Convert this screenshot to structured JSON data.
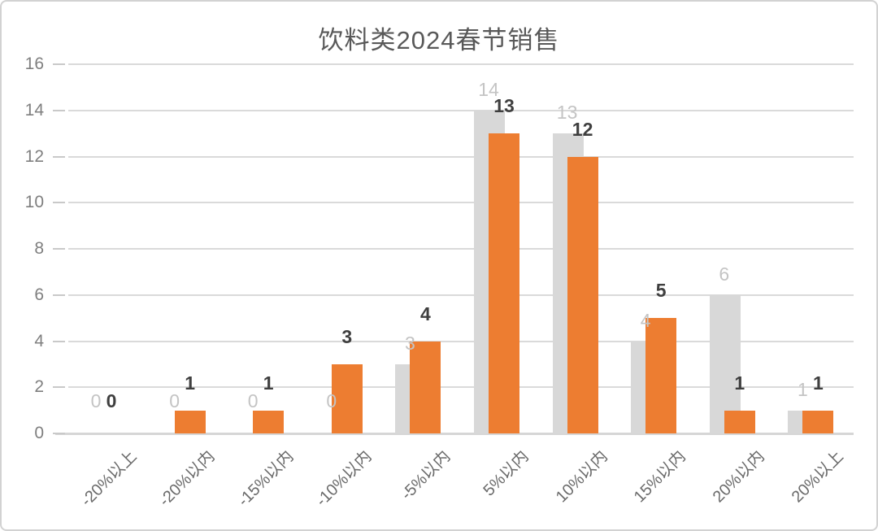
{
  "chart_data": {
    "type": "bar",
    "title": "饮料类2024春节销售",
    "categories": [
      "-20%以上",
      "-20%以内",
      "-15%以内",
      "-10%以内",
      "-5%以内",
      "5%以内",
      "10%以内",
      "15%以内",
      "20%以内",
      "20%以上"
    ],
    "series": [
      {
        "id": "series-gray",
        "color": "#d8d8d8",
        "label_color": "#c4c4c4",
        "label_bold": false,
        "values": [
          0,
          0,
          0,
          0,
          3,
          14,
          13,
          4,
          6,
          1
        ]
      },
      {
        "id": "series-orange",
        "color": "#ed7d31",
        "label_color": "#3f3f3f",
        "label_bold": true,
        "values": [
          0,
          1,
          1,
          3,
          4,
          13,
          12,
          5,
          1,
          1
        ]
      }
    ],
    "xlabel": "",
    "ylabel": "",
    "ylim": [
      0,
      16
    ],
    "ytick_step": 2,
    "yticks": [
      0,
      2,
      4,
      6,
      8,
      10,
      12,
      14,
      16
    ],
    "grid": true,
    "legend": false,
    "title_color": "#595959",
    "axis_label_color": "#7f7f7f",
    "gridline_color": "#dadada"
  }
}
